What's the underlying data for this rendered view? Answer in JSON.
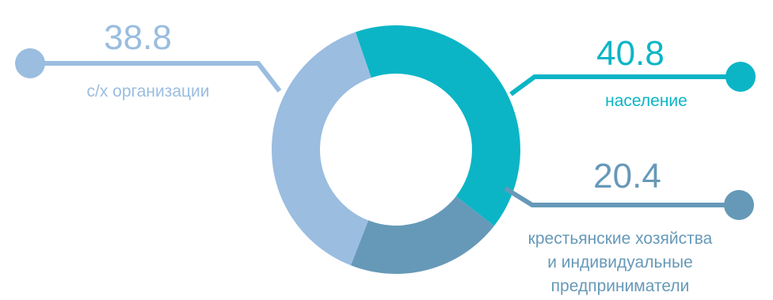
{
  "chart_data": {
    "type": "pie",
    "variant": "donut",
    "title": "",
    "categories": [
      "население",
      "крестьянские хозяйства и индивидуальные предприниматели",
      "с/х организации"
    ],
    "values": [
      40.8,
      20.4,
      38.8
    ],
    "value_labels": [
      "40.8",
      "20.4",
      "38.8"
    ],
    "label_lines": [
      [
        "население"
      ],
      [
        "крестьянские хозяйства",
        "и индивидуальные",
        "предприниматели"
      ],
      [
        "с/х организации"
      ]
    ],
    "colors": [
      "#0bb5c6",
      "#6699b8",
      "#9abde0"
    ],
    "legend": "none"
  }
}
